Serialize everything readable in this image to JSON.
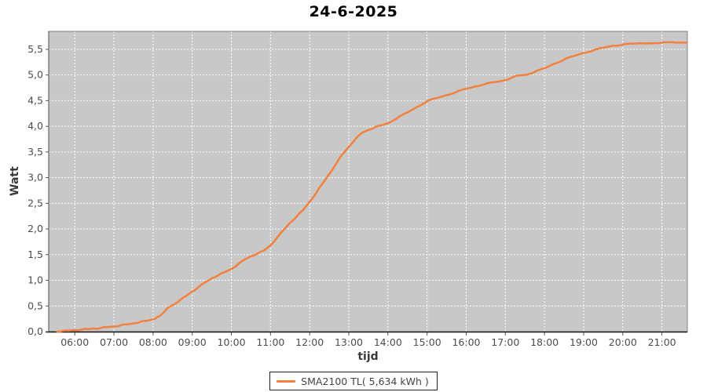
{
  "header": {
    "title": "24-6-2025"
  },
  "colors": {
    "line": "#F2813F",
    "plot_background": "#C8C8C8",
    "gridline": "#FFFFFF",
    "tick_text": "#4D4D4D",
    "axis_line": "#1A1A1A",
    "plot_outline": "#808080",
    "legend_border": "#222222"
  },
  "chart_data": {
    "type": "line",
    "title": "24-6-2025",
    "xlabel": "tijd",
    "ylabel": "Watt",
    "x_domain_minutes": [
      320,
      1299
    ],
    "ylim": [
      0,
      5.85
    ],
    "grid": true,
    "legend_position": "bottom-center",
    "xticks": [
      {
        "time": "06:00",
        "label": "06:00"
      },
      {
        "time": "07:00",
        "label": "07:00"
      },
      {
        "time": "08:00",
        "label": "08:00"
      },
      {
        "time": "09:00",
        "label": "09:00"
      },
      {
        "time": "10:00",
        "label": "10:00"
      },
      {
        "time": "11:00",
        "label": "11:00"
      },
      {
        "time": "12:00",
        "label": "12:00"
      },
      {
        "time": "13:00",
        "label": "13:00"
      },
      {
        "time": "14:00",
        "label": "14:00"
      },
      {
        "time": "15:00",
        "label": "15:00"
      },
      {
        "time": "16:00",
        "label": "16:00"
      },
      {
        "time": "17:00",
        "label": "17:00"
      },
      {
        "time": "18:00",
        "label": "18:00"
      },
      {
        "time": "19:00",
        "label": "19:00"
      },
      {
        "time": "20:00",
        "label": "20:00"
      },
      {
        "time": "21:00",
        "label": "21:00"
      }
    ],
    "yticks": [
      {
        "value": 0.0,
        "label": "0,0"
      },
      {
        "value": 0.5,
        "label": "0,5"
      },
      {
        "value": 1.0,
        "label": "1,0"
      },
      {
        "value": 1.5,
        "label": "1,5"
      },
      {
        "value": 2.0,
        "label": "2,0"
      },
      {
        "value": 2.5,
        "label": "2,5"
      },
      {
        "value": 3.0,
        "label": "3,0"
      },
      {
        "value": 3.5,
        "label": "3,5"
      },
      {
        "value": 4.0,
        "label": "4,0"
      },
      {
        "value": 4.5,
        "label": "4,5"
      },
      {
        "value": 5.0,
        "label": "5,0"
      },
      {
        "value": 5.5,
        "label": "5,5"
      }
    ],
    "series": [
      {
        "name": "SMA2100 TL( 5,634 kWh )",
        "color": "#F2813F",
        "unit": "kWh (cumulative)",
        "points": [
          [
            "05:33",
            0.0
          ],
          [
            "05:40",
            0.01
          ],
          [
            "05:50",
            0.02
          ],
          [
            "06:00",
            0.03
          ],
          [
            "06:10",
            0.04
          ],
          [
            "06:20",
            0.05
          ],
          [
            "06:30",
            0.06
          ],
          [
            "06:40",
            0.07
          ],
          [
            "06:50",
            0.09
          ],
          [
            "07:00",
            0.1
          ],
          [
            "07:10",
            0.12
          ],
          [
            "07:20",
            0.14
          ],
          [
            "07:30",
            0.16
          ],
          [
            "07:40",
            0.19
          ],
          [
            "07:50",
            0.21
          ],
          [
            "08:00",
            0.24
          ],
          [
            "08:05",
            0.27
          ],
          [
            "08:10",
            0.3
          ],
          [
            "08:15",
            0.36
          ],
          [
            "08:20",
            0.43
          ],
          [
            "08:25",
            0.48
          ],
          [
            "08:30",
            0.52
          ],
          [
            "08:40",
            0.6
          ],
          [
            "08:50",
            0.69
          ],
          [
            "09:00",
            0.78
          ],
          [
            "09:10",
            0.87
          ],
          [
            "09:20",
            0.96
          ],
          [
            "09:30",
            1.04
          ],
          [
            "09:40",
            1.1
          ],
          [
            "09:50",
            1.16
          ],
          [
            "10:00",
            1.22
          ],
          [
            "10:10",
            1.31
          ],
          [
            "10:20",
            1.4
          ],
          [
            "10:30",
            1.47
          ],
          [
            "10:40",
            1.52
          ],
          [
            "10:50",
            1.58
          ],
          [
            "11:00",
            1.68
          ],
          [
            "11:10",
            1.83
          ],
          [
            "11:20",
            1.98
          ],
          [
            "11:30",
            2.12
          ],
          [
            "11:40",
            2.24
          ],
          [
            "11:50",
            2.37
          ],
          [
            "12:00",
            2.53
          ],
          [
            "12:10",
            2.7
          ],
          [
            "12:20",
            2.89
          ],
          [
            "12:30",
            3.07
          ],
          [
            "12:40",
            3.26
          ],
          [
            "12:50",
            3.45
          ],
          [
            "13:00",
            3.6
          ],
          [
            "13:10",
            3.75
          ],
          [
            "13:20",
            3.87
          ],
          [
            "13:30",
            3.93
          ],
          [
            "13:40",
            3.98
          ],
          [
            "13:50",
            4.02
          ],
          [
            "14:00",
            4.06
          ],
          [
            "14:15",
            4.17
          ],
          [
            "14:30",
            4.27
          ],
          [
            "14:45",
            4.38
          ],
          [
            "15:00",
            4.49
          ],
          [
            "15:15",
            4.55
          ],
          [
            "15:30",
            4.61
          ],
          [
            "15:45",
            4.67
          ],
          [
            "16:00",
            4.73
          ],
          [
            "16:15",
            4.78
          ],
          [
            "16:30",
            4.83
          ],
          [
            "16:45",
            4.86
          ],
          [
            "17:00",
            4.9
          ],
          [
            "17:10",
            4.95
          ],
          [
            "17:20",
            4.99
          ],
          [
            "17:30",
            5.0
          ],
          [
            "17:45",
            5.06
          ],
          [
            "18:00",
            5.13
          ],
          [
            "18:15",
            5.22
          ],
          [
            "18:30",
            5.3
          ],
          [
            "18:45",
            5.37
          ],
          [
            "19:00",
            5.43
          ],
          [
            "19:15",
            5.48
          ],
          [
            "19:30",
            5.53
          ],
          [
            "19:45",
            5.57
          ],
          [
            "20:00",
            5.59
          ],
          [
            "20:15",
            5.61
          ],
          [
            "20:30",
            5.62
          ],
          [
            "21:00",
            5.63
          ],
          [
            "21:20",
            5.63
          ],
          [
            "21:38",
            5.63
          ]
        ]
      }
    ]
  }
}
